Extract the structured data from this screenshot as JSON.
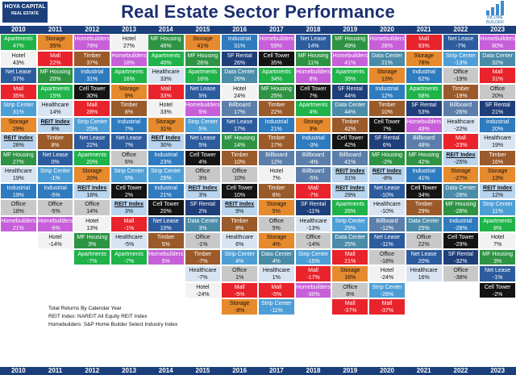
{
  "header": {
    "title": "Real Estate Sector Performance",
    "logo_left_line1": "HOYA CAPITAL",
    "logo_left_line2": "REAL ESTATE",
    "logo_right_text": "INCOME BUILDER"
  },
  "notes": [
    "Total Returns By Calendar Year",
    "REIT Index: NAREIT All Equity REIT Index",
    "Homebuilders: S&P Home Builder Select Industry Index"
  ],
  "colors": {
    "Apartments": "#1fb34a",
    "Storage": "#e68a2e",
    "Homebuilders": "#c75fd9",
    "Hotel": "#f2f2f2",
    "MF Housing": "#2e9444",
    "Industrial": "#2e7bbf",
    "Mall": "#e8232b",
    "Net Lease": "#2d5c9e",
    "Cell Tower": "#141414",
    "Healthcare": "#d8e4f2",
    "Strip Center": "#4e9ed6",
    "Timber": "#9a5a2a",
    "Office": "#c8c8c8",
    "Data Center": "#4a8ba8",
    "SF Rental": "#1f3f7a",
    "Billboard": "#5b7faa",
    "REIT Index": "#b8d4ee",
    "Farmland": "#f4e6a8"
  },
  "chart_data": {
    "type": "table",
    "title": "Real Estate Sector Performance",
    "years": [
      "2010",
      "2011",
      "2012",
      "2013",
      "2014",
      "2015",
      "2016",
      "2017",
      "2018",
      "2019",
      "2020",
      "2021",
      "2022",
      "2023"
    ],
    "columns": [
      {
        "year": "2010",
        "cells": [
          [
            "Apartments",
            "47%"
          ],
          [
            "Hotel",
            "43%"
          ],
          [
            "Net Lease",
            "37%"
          ],
          [
            "Mall",
            "35%"
          ],
          [
            "Strip Center",
            "31%"
          ],
          [
            "Storage",
            "29%"
          ],
          [
            "REIT Index",
            "28%"
          ],
          [
            "MF Housing",
            "27%"
          ],
          [
            "Healthcare",
            "19%"
          ],
          [
            "Industrial",
            "19%"
          ],
          [
            "Office",
            "18%"
          ],
          [
            "Homebuilders",
            "21%"
          ]
        ]
      },
      {
        "year": "2011",
        "cells": [
          [
            "Storage",
            "35%"
          ],
          [
            "Mall",
            "22%"
          ],
          [
            "MF Housing",
            "20%"
          ],
          [
            "Apartments",
            "15%"
          ],
          [
            "Healthcare",
            "14%"
          ],
          [
            "REIT Index",
            "8%"
          ],
          [
            "Timber",
            "8%"
          ],
          [
            "Net Lease",
            "0%"
          ],
          [
            "Strip Center",
            "-1%"
          ],
          [
            "Industrial",
            "-5%"
          ],
          [
            "Office",
            "-5%"
          ],
          [
            "Homebuilders",
            "-9%"
          ],
          [
            "Hotel",
            "-14%"
          ]
        ]
      },
      {
        "year": "2012",
        "cells": [
          [
            "Homebuilders",
            "79%"
          ],
          [
            "Timber",
            "37%"
          ],
          [
            "Industrial",
            "31%"
          ],
          [
            "Cell Tower",
            "30%"
          ],
          [
            "Mall",
            "28%"
          ],
          [
            "Strip Center",
            "25%"
          ],
          [
            "Net Lease",
            "22%"
          ],
          [
            "Apartments",
            "20%"
          ],
          [
            "Storage",
            "20%"
          ],
          [
            "REIT Index",
            "18%"
          ],
          [
            "Office",
            "14%"
          ],
          [
            "Hotel",
            "13%"
          ],
          [
            "MF Housing",
            "3%"
          ],
          [
            "Apartments",
            "-7%"
          ]
        ]
      },
      {
        "year": "2013",
        "cells": [
          [
            "Hotel",
            "27%"
          ],
          [
            "Homebuilders",
            "18%"
          ],
          [
            "Apartments",
            "16%"
          ],
          [
            "Storage",
            "9%"
          ],
          [
            "Timber",
            "8%"
          ],
          [
            "Industrial",
            "7%"
          ],
          [
            "Net Lease",
            "7%"
          ],
          [
            "Office",
            "6%"
          ],
          [
            "Strip Center",
            "5%"
          ],
          [
            "Cell Tower",
            "2%"
          ],
          [
            "REIT Index",
            "3%"
          ],
          [
            "Mall",
            "-1%"
          ],
          [
            "Healthcare",
            "-5%"
          ],
          [
            "Apartments",
            "-7%"
          ]
        ]
      },
      {
        "year": "2014",
        "cells": [
          [
            "MF Housing",
            "46%"
          ],
          [
            "Apartments",
            "40%"
          ],
          [
            "Healthcare",
            "33%"
          ],
          [
            "Mall",
            "33%"
          ],
          [
            "Hotel",
            "33%"
          ],
          [
            "Storage",
            "31%"
          ],
          [
            "REIT Index",
            "30%"
          ],
          [
            "Industrial",
            "23%"
          ],
          [
            "Strip Center",
            "25%"
          ],
          [
            "Industrial",
            "21%"
          ],
          [
            "Cell Tower",
            "20%"
          ],
          [
            "Net Lease",
            "10%"
          ],
          [
            "Timber",
            "5%"
          ],
          [
            "Homebuilders",
            "5%"
          ]
        ]
      },
      {
        "year": "2015",
        "cells": [
          [
            "Storage",
            "41%"
          ],
          [
            "MF Housing",
            "26%"
          ],
          [
            "Apartments",
            "16%"
          ],
          [
            "Net Lease",
            "5%"
          ],
          [
            "Homebuilders",
            "5%"
          ],
          [
            "Strip Center",
            "5%"
          ],
          [
            "Net Lease",
            "5%"
          ],
          [
            "Cell Tower",
            "4%"
          ],
          [
            "Office",
            "3%"
          ],
          [
            "REIT Index",
            "3%"
          ],
          [
            "SF Rental",
            "2%"
          ],
          [
            "Data Center",
            "3%"
          ],
          [
            "Office",
            "-1%"
          ],
          [
            "Timber",
            "-7%"
          ],
          [
            "Healthcare",
            "-7%"
          ],
          [
            "Hotel",
            "-24%"
          ]
        ]
      },
      {
        "year": "2016",
        "cells": [
          [
            "Industrial",
            "31%"
          ],
          [
            "SF Rental",
            "26%"
          ],
          [
            "Data Center",
            "26%"
          ],
          [
            "Hotel",
            "24%"
          ],
          [
            "Billboard",
            "17%"
          ],
          [
            "Net Lease",
            "17%"
          ],
          [
            "MF Housing",
            "14%"
          ],
          [
            "Timber",
            "10%"
          ],
          [
            "Office",
            "10%"
          ],
          [
            "Cell Tower",
            "10%"
          ],
          [
            "REIT Index",
            "9%"
          ],
          [
            "Timber",
            "8%"
          ],
          [
            "Healthcare",
            "6%"
          ],
          [
            "Strip Center",
            "4%"
          ],
          [
            "Office",
            "1%"
          ],
          [
            "Mall",
            "-5%"
          ],
          [
            "Storage",
            "-8%"
          ]
        ]
      },
      {
        "year": "2017",
        "cells": [
          [
            "Homebuilders",
            "59%"
          ],
          [
            "Cell Tower",
            "35%"
          ],
          [
            "Apartments",
            "34%"
          ],
          [
            "MF Housing",
            "25%"
          ],
          [
            "Timber",
            "22%"
          ],
          [
            "Industrial",
            "21%"
          ],
          [
            "Timber",
            "17%"
          ],
          [
            "Billboard",
            "12%"
          ],
          [
            "Hotel",
            "7%"
          ],
          [
            "Timber",
            "6%"
          ],
          [
            "Storage",
            "5%"
          ],
          [
            "Office",
            "5%"
          ],
          [
            "Storage",
            "4%"
          ],
          [
            "Data Center",
            "4%"
          ],
          [
            "Healthcare",
            "1%"
          ],
          [
            "Mall",
            "-5%"
          ],
          [
            "Strip Center",
            "-11%"
          ]
        ]
      },
      {
        "year": "2018",
        "cells": [
          [
            "Net Lease",
            "14%"
          ],
          [
            "MF Housing",
            "11%"
          ],
          [
            "Homebuilders",
            "8%"
          ],
          [
            "Cell Tower",
            "7%"
          ],
          [
            "Apartments",
            "4%"
          ],
          [
            "Storage",
            "3%"
          ],
          [
            "Industrial",
            "-3%"
          ],
          [
            "Billboard",
            "-4%"
          ],
          [
            "Billboard",
            "-5%"
          ],
          [
            "Mall",
            "-7%"
          ],
          [
            "SF Rental",
            "-11%"
          ],
          [
            "Healthcare",
            "-13%"
          ],
          [
            "Office",
            "-14%"
          ],
          [
            "Strip Center",
            "-15%"
          ],
          [
            "Mall",
            "-17%"
          ],
          [
            "Homebuilders",
            "-30%"
          ]
        ]
      },
      {
        "year": "2019",
        "cells": [
          [
            "MF Housing",
            "49%"
          ],
          [
            "Homebuilders",
            "41%"
          ],
          [
            "Apartments",
            "35%"
          ],
          [
            "SF Rental",
            "44%"
          ],
          [
            "Data Center",
            "44%"
          ],
          [
            "Timber",
            "42%"
          ],
          [
            "Cell Tower",
            "42%"
          ],
          [
            "Billboard",
            "41%"
          ],
          [
            "REIT Index",
            "31%"
          ],
          [
            "REIT Index",
            "29%"
          ],
          [
            "Apartments",
            "26%"
          ],
          [
            "Strip Center",
            "25%"
          ],
          [
            "Data Center",
            "25%"
          ],
          [
            "Mall",
            "21%"
          ],
          [
            "Storage",
            "16%"
          ],
          [
            "Office",
            "8%"
          ],
          [
            "Mall",
            "-37%"
          ]
        ]
      },
      {
        "year": "2020",
        "cells": [
          [
            "Homebuilders",
            "28%"
          ],
          [
            "Data Center",
            "21%"
          ],
          [
            "Storage",
            "13%"
          ],
          [
            "Industrial",
            "12%"
          ],
          [
            "Timber",
            "10%"
          ],
          [
            "Cell Tower",
            "7%"
          ],
          [
            "SF Rental",
            "6%"
          ],
          [
            "MF Housing",
            "-2%"
          ],
          [
            "REIT Index",
            "-8%"
          ],
          [
            "Net Lease",
            "-10%"
          ],
          [
            "Healthcare",
            "-10%"
          ],
          [
            "Billboard",
            "-12%"
          ],
          [
            "Net Lease",
            "-11%"
          ],
          [
            "Office",
            "-18%"
          ],
          [
            "Hotel",
            "-24%"
          ],
          [
            "Strip Center",
            "-28%"
          ],
          [
            "Mall",
            "-37%"
          ]
        ]
      },
      {
        "year": "2021",
        "cells": [
          [
            "Mall",
            "93%"
          ],
          [
            "Storage",
            "78%"
          ],
          [
            "Industrial",
            "62%"
          ],
          [
            "Apartments",
            "58%"
          ],
          [
            "SF Rental",
            "53%"
          ],
          [
            "Homebuilders",
            "49%"
          ],
          [
            "Billboard",
            "48%"
          ],
          [
            "MF Housing",
            "42%"
          ],
          [
            "Industrial",
            "41%"
          ],
          [
            "Cell Tower",
            "34%"
          ],
          [
            "Timber",
            "29%"
          ],
          [
            "Data Center",
            "25%"
          ],
          [
            "Office",
            "22%"
          ],
          [
            "Net Lease",
            "20%"
          ],
          [
            "Healthcare",
            "16%"
          ]
        ]
      },
      {
        "year": "2022",
        "cells": [
          [
            "Net Lease",
            "-7%"
          ],
          [
            "Strip Center",
            "-13%"
          ],
          [
            "Office",
            "-19%"
          ],
          [
            "Timber",
            "-19%"
          ],
          [
            "Billboard",
            "-26%"
          ],
          [
            "Healthcare",
            "-22%"
          ],
          [
            "Mall",
            "-23%"
          ],
          [
            "REIT Index",
            "-25%"
          ],
          [
            "Storage",
            "-27%"
          ],
          [
            "Data Center",
            "-28%"
          ],
          [
            "MF Housing",
            "-28%"
          ],
          [
            "Industrial",
            "-28%"
          ],
          [
            "Cell Tower",
            "-29%"
          ],
          [
            "SF Rental",
            "-32%"
          ],
          [
            "Office",
            "-38%"
          ]
        ]
      },
      {
        "year": "2023",
        "cells": [
          [
            "Homebuilders",
            "60%"
          ],
          [
            "Data Center",
            "32%"
          ],
          [
            "Mall",
            "31%"
          ],
          [
            "Office",
            "20%"
          ],
          [
            "SF Rental",
            "21%"
          ],
          [
            "Industrial",
            "20%"
          ],
          [
            "Healthcare",
            "19%"
          ],
          [
            "Timber",
            "16%"
          ],
          [
            "Storage",
            "13%"
          ],
          [
            "REIT Index",
            "12%"
          ],
          [
            "Strip Center",
            "11%"
          ],
          [
            "Apartments",
            "8%"
          ],
          [
            "Hotel",
            "7%"
          ],
          [
            "MF Housing",
            "3%"
          ],
          [
            "Net Lease",
            "-1%"
          ],
          [
            "Cell Tower",
            "-2%"
          ]
        ]
      }
    ]
  }
}
